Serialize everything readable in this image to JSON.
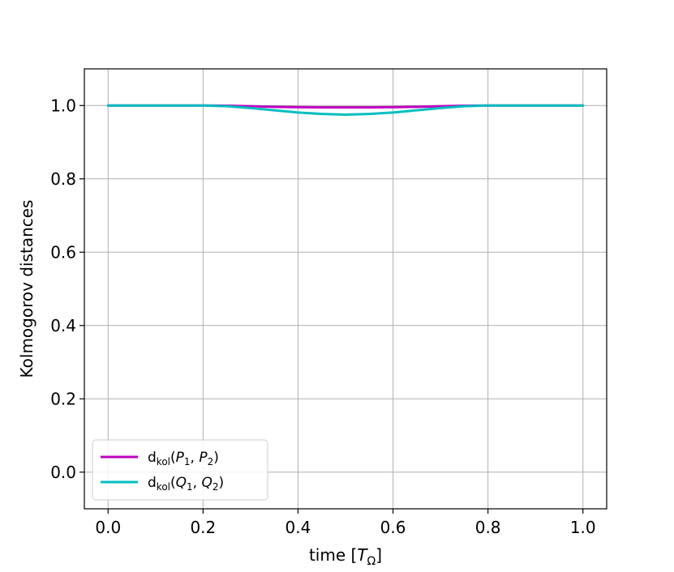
{
  "chart_data": {
    "type": "line",
    "title": "",
    "xlabel_base": "time [",
    "xlabel_sym": "T",
    "xlabel_sub": "Ω",
    "xlabel_end": "]",
    "ylabel": "Kolmogorov distances",
    "xlim": [
      -0.05,
      1.05
    ],
    "ylim": [
      -0.1,
      1.1
    ],
    "xticks": [
      0.0,
      0.2,
      0.4,
      0.6,
      0.8,
      1.0
    ],
    "xtick_labels": [
      "0.0",
      "0.2",
      "0.4",
      "0.6",
      "0.8",
      "1.0"
    ],
    "yticks": [
      0.0,
      0.2,
      0.4,
      0.6,
      0.8,
      1.0
    ],
    "ytick_labels": [
      "0.0",
      "0.2",
      "0.4",
      "0.6",
      "0.8",
      "1.0"
    ],
    "grid": true,
    "legend_position": "lower-left",
    "series": [
      {
        "name": "d_kol(P1, P2)",
        "legend": {
          "d": "d",
          "sub": "kol",
          "open": "(",
          "a": "P",
          "a_sub": "1",
          "sep": ", ",
          "b": "P",
          "b_sub": "2",
          "close": ")"
        },
        "color": "#bf00bf",
        "x": [
          0.0,
          0.1,
          0.2,
          0.25,
          0.3,
          0.35,
          0.4,
          0.45,
          0.5,
          0.55,
          0.6,
          0.65,
          0.7,
          0.75,
          0.8,
          0.9,
          1.0
        ],
        "y": [
          1.0,
          1.0,
          1.0,
          0.9995,
          0.998,
          0.9965,
          0.9955,
          0.995,
          0.995,
          0.995,
          0.9955,
          0.9965,
          0.998,
          0.9995,
          1.0,
          1.0,
          1.0
        ]
      },
      {
        "name": "d_kol(Q1, Q2)",
        "legend": {
          "d": "d",
          "sub": "kol",
          "open": "(",
          "a": "Q",
          "a_sub": "1",
          "sep": ", ",
          "b": "Q",
          "b_sub": "2",
          "close": ")"
        },
        "color": "#00bfbf",
        "x": [
          0.0,
          0.1,
          0.2,
          0.25,
          0.3,
          0.35,
          0.4,
          0.45,
          0.5,
          0.55,
          0.6,
          0.65,
          0.7,
          0.75,
          0.8,
          0.9,
          1.0
        ],
        "y": [
          1.0,
          1.0,
          1.0,
          0.998,
          0.993,
          0.987,
          0.981,
          0.977,
          0.975,
          0.977,
          0.981,
          0.987,
          0.993,
          0.998,
          1.0,
          1.0,
          1.0
        ]
      }
    ]
  }
}
